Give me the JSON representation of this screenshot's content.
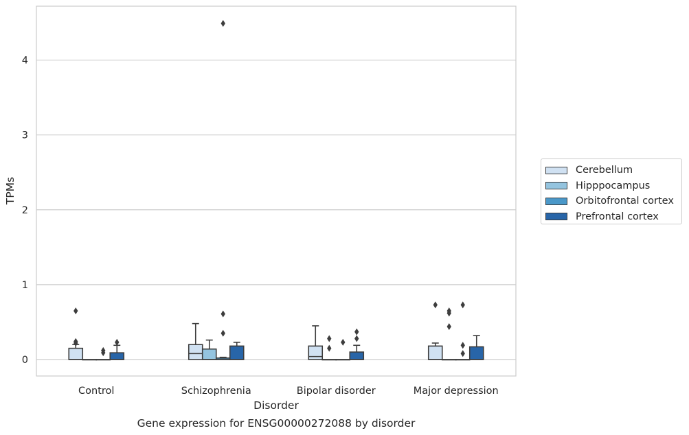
{
  "chart_data": {
    "type": "box",
    "title": "Gene expression for ENSG00000272088 by disorder",
    "xlabel": "Disorder",
    "ylabel": "TPMs",
    "ylim": [
      -0.22,
      4.72
    ],
    "yticks": [
      0,
      1,
      2,
      3,
      4
    ],
    "grid": "horizontal",
    "legend_position": "right",
    "categories": [
      "Control",
      "Schizophrenia",
      "Bipolar disorder",
      "Major depression"
    ],
    "series": [
      {
        "name": "Cerebellum",
        "color": "#d0e1f2",
        "boxes": [
          {
            "q1": 0.0,
            "median": 0.0,
            "q3": 0.15,
            "whisker_low": 0.0,
            "whisker_high": 0.2,
            "outliers": [
              0.65,
              0.24,
              0.22
            ]
          },
          {
            "q1": 0.0,
            "median": 0.08,
            "q3": 0.2,
            "whisker_low": 0.0,
            "whisker_high": 0.48,
            "outliers": []
          },
          {
            "q1": 0.0,
            "median": 0.04,
            "q3": 0.18,
            "whisker_low": 0.0,
            "whisker_high": 0.45,
            "outliers": []
          },
          {
            "q1": 0.0,
            "median": 0.0,
            "q3": 0.18,
            "whisker_low": 0.0,
            "whisker_high": 0.22,
            "outliers": [
              0.73
            ]
          }
        ]
      },
      {
        "name": "Hipppocampus",
        "color": "#94c4df",
        "boxes": [
          {
            "q1": 0.0,
            "median": 0.0,
            "q3": 0.0,
            "whisker_low": 0.0,
            "whisker_high": 0.0,
            "outliers": []
          },
          {
            "q1": 0.0,
            "median": 0.0,
            "q3": 0.14,
            "whisker_low": 0.0,
            "whisker_high": 0.26,
            "outliers": []
          },
          {
            "q1": 0.0,
            "median": 0.0,
            "q3": 0.0,
            "whisker_low": 0.0,
            "whisker_high": 0.0,
            "outliers": [
              0.28,
              0.15
            ]
          },
          {
            "q1": 0.0,
            "median": 0.0,
            "q3": 0.0,
            "whisker_low": 0.0,
            "whisker_high": 0.0,
            "outliers": [
              0.65,
              0.62,
              0.44
            ]
          }
        ]
      },
      {
        "name": "Orbitofrontal cortex",
        "color": "#4a98c9",
        "boxes": [
          {
            "q1": 0.0,
            "median": 0.0,
            "q3": 0.0,
            "whisker_low": 0.0,
            "whisker_high": 0.0,
            "outliers": [
              0.12,
              0.09
            ]
          },
          {
            "q1": 0.0,
            "median": 0.0,
            "q3": 0.02,
            "whisker_low": 0.0,
            "whisker_high": 0.03,
            "outliers": [
              4.49,
              0.61,
              0.35
            ]
          },
          {
            "q1": 0.0,
            "median": 0.0,
            "q3": 0.0,
            "whisker_low": 0.0,
            "whisker_high": 0.0,
            "outliers": [
              0.23
            ]
          },
          {
            "q1": 0.0,
            "median": 0.0,
            "q3": 0.0,
            "whisker_low": 0.0,
            "whisker_high": 0.0,
            "outliers": [
              0.73,
              0.19,
              0.08
            ]
          }
        ]
      },
      {
        "name": "Prefrontal cortex",
        "color": "#2865a8",
        "boxes": [
          {
            "q1": 0.0,
            "median": 0.0,
            "q3": 0.09,
            "whisker_low": 0.0,
            "whisker_high": 0.19,
            "outliers": [
              0.23
            ]
          },
          {
            "q1": 0.0,
            "median": 0.0,
            "q3": 0.18,
            "whisker_low": 0.0,
            "whisker_high": 0.23,
            "outliers": []
          },
          {
            "q1": 0.0,
            "median": 0.0,
            "q3": 0.1,
            "whisker_low": 0.0,
            "whisker_high": 0.19,
            "outliers": [
              0.37,
              0.28
            ]
          },
          {
            "q1": 0.0,
            "median": 0.0,
            "q3": 0.17,
            "whisker_low": 0.0,
            "whisker_high": 0.32,
            "outliers": []
          }
        ]
      }
    ]
  }
}
